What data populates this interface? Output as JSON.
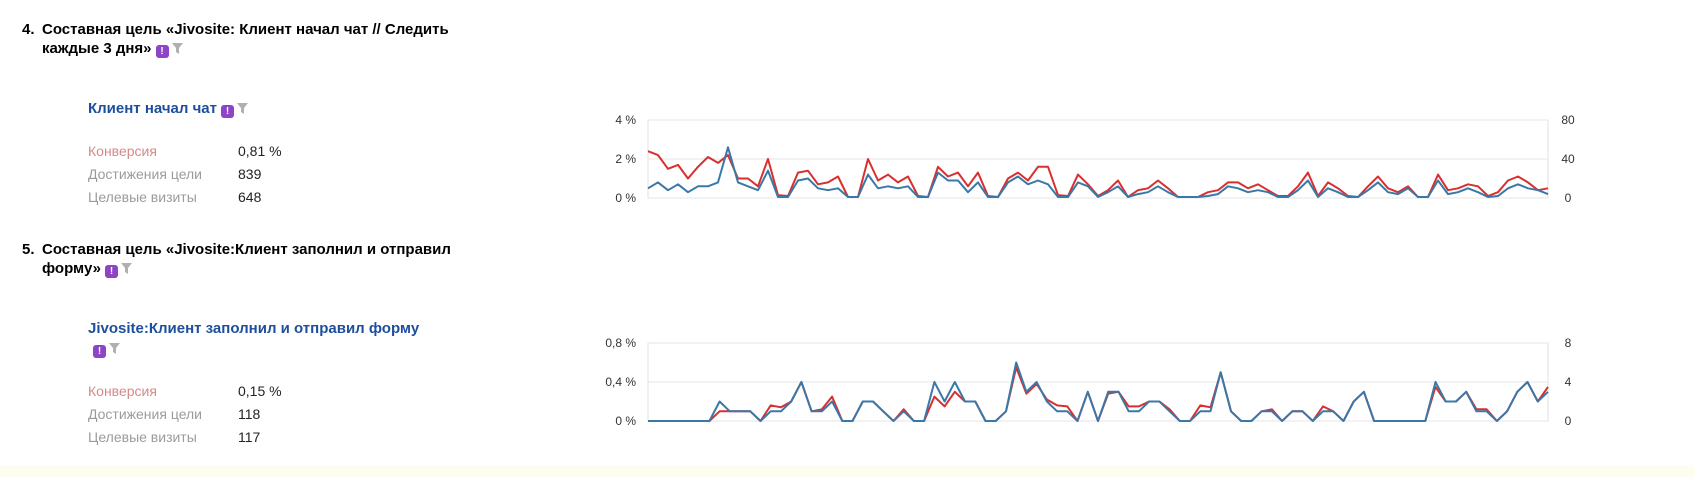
{
  "goals": [
    {
      "number": "4.",
      "title": "Составная цель «Jivosite: Клиент начал чат // Следить каждые 3 дня»",
      "subgoal": {
        "title": "Клиент начал чат",
        "metrics": [
          {
            "label": "Конверсия",
            "value": "0,81 %"
          },
          {
            "label": "Достижения цели",
            "value": "839"
          },
          {
            "label": "Целевые визиты",
            "value": "648"
          }
        ]
      }
    },
    {
      "number": "5.",
      "title": "Составная цель «Jivosite:Клиент заполнил и отправил форму»",
      "subgoal": {
        "title": "Jivosite:Клиент заполнил и отправил форму",
        "metrics": [
          {
            "label": "Конверсия",
            "value": "0,15 %"
          },
          {
            "label": "Достижения цели",
            "value": "118"
          },
          {
            "label": "Целевые визиты",
            "value": "117"
          }
        ]
      }
    }
  ],
  "icons": {
    "badge": "alert-badge-icon",
    "filter": "filter-icon"
  },
  "colors": {
    "red": "#d92f2f",
    "blue": "#3a78a8",
    "title_blue": "#1d4f9e"
  },
  "chart_data": [
    {
      "type": "line",
      "left_axis": {
        "ticks": [
          "0 %",
          "2 %",
          "4 %"
        ],
        "ylim": [
          0,
          4
        ]
      },
      "right_axis": {
        "ticks": [
          "0",
          "40",
          "80"
        ],
        "ylim": [
          0,
          80
        ]
      },
      "grid": true,
      "series": [
        {
          "color": "#d92f2f",
          "axis": "left",
          "values": [
            2.4,
            2.2,
            1.5,
            1.7,
            1.0,
            1.6,
            2.1,
            1.8,
            2.2,
            1.0,
            1.0,
            0.6,
            2.0,
            0.15,
            0.1,
            1.3,
            1.4,
            0.7,
            0.8,
            1.1,
            0.05,
            0.05,
            2.0,
            0.9,
            1.2,
            0.8,
            1.1,
            0.1,
            0.05,
            1.6,
            1.1,
            1.3,
            0.6,
            1.3,
            0.1,
            0.05,
            1.0,
            1.3,
            0.9,
            1.6,
            1.6,
            0.15,
            0.1,
            1.2,
            0.7,
            0.1,
            0.4,
            0.9,
            0.05,
            0.4,
            0.5,
            0.9,
            0.5,
            0.05,
            0.05,
            0.05,
            0.3,
            0.4,
            0.8,
            0.8,
            0.5,
            0.7,
            0.4,
            0.1,
            0.1,
            0.6,
            1.3,
            0.1,
            0.8,
            0.5,
            0.1,
            0.05,
            0.6,
            1.1,
            0.5,
            0.3,
            0.6,
            0.05,
            0.05,
            1.2,
            0.4,
            0.5,
            0.7,
            0.6,
            0.1,
            0.3,
            0.9,
            1.1,
            0.8,
            0.4,
            0.5
          ]
        },
        {
          "color": "#3a78a8",
          "axis": "left",
          "values": [
            0.5,
            0.8,
            0.4,
            0.7,
            0.3,
            0.6,
            0.6,
            0.8,
            2.6,
            0.8,
            0.6,
            0.4,
            1.4,
            0.05,
            0.05,
            0.9,
            1.0,
            0.5,
            0.4,
            0.5,
            0.05,
            0.05,
            1.2,
            0.5,
            0.6,
            0.5,
            0.6,
            0.05,
            0.05,
            1.3,
            0.9,
            0.9,
            0.3,
            0.8,
            0.05,
            0.05,
            0.8,
            1.1,
            0.7,
            0.9,
            0.7,
            0.05,
            0.05,
            0.8,
            0.6,
            0.05,
            0.3,
            0.6,
            0.05,
            0.2,
            0.3,
            0.6,
            0.3,
            0.05,
            0.05,
            0.05,
            0.1,
            0.2,
            0.6,
            0.5,
            0.3,
            0.4,
            0.3,
            0.05,
            0.05,
            0.4,
            0.9,
            0.05,
            0.5,
            0.3,
            0.05,
            0.05,
            0.4,
            0.8,
            0.3,
            0.2,
            0.5,
            0.05,
            0.05,
            0.9,
            0.2,
            0.3,
            0.5,
            0.3,
            0.05,
            0.1,
            0.5,
            0.7,
            0.5,
            0.4,
            0.2
          ]
        }
      ]
    },
    {
      "type": "line",
      "left_axis": {
        "ticks": [
          "0 %",
          "0,4 %",
          "0,8 %"
        ],
        "ylim": [
          0,
          0.8
        ]
      },
      "right_axis": {
        "ticks": [
          "0",
          "4",
          "8"
        ],
        "ylim": [
          0,
          8
        ]
      },
      "grid": true,
      "series": [
        {
          "color": "#d92f2f",
          "axis": "left",
          "values": [
            0,
            0,
            0,
            0,
            0,
            0,
            0,
            0.1,
            0.1,
            0.1,
            0.1,
            0,
            0.16,
            0.14,
            0.2,
            0.4,
            0.1,
            0.12,
            0.25,
            0,
            0,
            0.2,
            0.2,
            0.1,
            0,
            0.12,
            0,
            0,
            0.25,
            0.15,
            0.3,
            0.2,
            0.2,
            0,
            0,
            0.1,
            0.55,
            0.28,
            0.38,
            0.22,
            0.16,
            0.15,
            0,
            0.3,
            0,
            0.28,
            0.3,
            0.15,
            0.15,
            0.2,
            0.2,
            0.12,
            0,
            0,
            0.16,
            0.14,
            0.5,
            0.1,
            0,
            0,
            0.1,
            0.12,
            0,
            0.1,
            0.1,
            0,
            0.15,
            0.1,
            0,
            0.2,
            0.3,
            0,
            0,
            0,
            0,
            0,
            0,
            0.35,
            0.2,
            0.2,
            0.3,
            0.12,
            0.12,
            0,
            0.1,
            0.3,
            0.4,
            0.2,
            0.35
          ]
        },
        {
          "color": "#3a78a8",
          "axis": "left",
          "values": [
            0,
            0,
            0,
            0,
            0,
            0,
            0,
            0.2,
            0.1,
            0.1,
            0.1,
            0,
            0.1,
            0.1,
            0.2,
            0.4,
            0.1,
            0.1,
            0.2,
            0,
            0,
            0.2,
            0.2,
            0.1,
            0,
            0.1,
            0,
            0,
            0.4,
            0.2,
            0.4,
            0.2,
            0.2,
            0,
            0,
            0.1,
            0.6,
            0.3,
            0.4,
            0.2,
            0.1,
            0.1,
            0,
            0.3,
            0,
            0.3,
            0.3,
            0.1,
            0.1,
            0.2,
            0.2,
            0.1,
            0,
            0,
            0.1,
            0.1,
            0.5,
            0.1,
            0,
            0,
            0.1,
            0.1,
            0,
            0.1,
            0.1,
            0,
            0.1,
            0.1,
            0,
            0.2,
            0.3,
            0,
            0,
            0,
            0,
            0,
            0,
            0.4,
            0.2,
            0.2,
            0.3,
            0.1,
            0.1,
            0,
            0.1,
            0.3,
            0.4,
            0.2,
            0.3
          ]
        }
      ]
    }
  ]
}
